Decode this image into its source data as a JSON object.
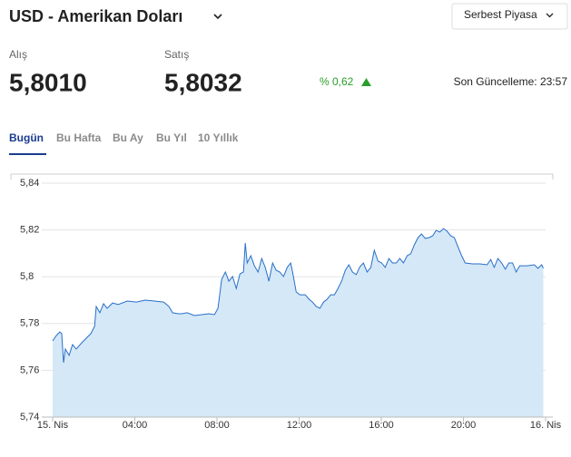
{
  "header": {
    "title": "USD - Amerikan Doları",
    "market": "Serbest Piyasa"
  },
  "quotes": {
    "buy_label": "Alış",
    "buy": "5,8010",
    "sell_label": "Satış",
    "sell": "5,8032",
    "change": "% 0,62",
    "updated": "Son Güncelleme: 23:57"
  },
  "tabs": [
    "Bugün",
    "Bu Hafta",
    "Bu Ay",
    "Bu Yıl",
    "10 Yıllık"
  ],
  "chart_data": {
    "type": "area",
    "color": "#2a6fc9",
    "fill": "#d4e8f7",
    "grid": true,
    "xlim": [
      0,
      24
    ],
    "xticks": [
      {
        "value": 0,
        "label": "15. Nis"
      },
      {
        "value": 4,
        "label": "04:00"
      },
      {
        "value": 8,
        "label": "08:00"
      },
      {
        "value": 12,
        "label": "12:00"
      },
      {
        "value": 16,
        "label": "16:00"
      },
      {
        "value": 20,
        "label": "20:00"
      },
      {
        "value": 24,
        "label": "16. Nis"
      }
    ],
    "ylim": [
      5.74,
      5.84
    ],
    "yticks": [
      {
        "value": 5.74,
        "label": "5,74"
      },
      {
        "value": 5.76,
        "label": "5,76"
      },
      {
        "value": 5.78,
        "label": "5,78"
      },
      {
        "value": 5.8,
        "label": "5,8"
      },
      {
        "value": 5.82,
        "label": "5,82"
      },
      {
        "value": 5.84,
        "label": "5,84"
      }
    ],
    "x": [
      0,
      0.18,
      0.35,
      0.44,
      0.53,
      0.62,
      0.8,
      0.97,
      1.15,
      1.42,
      1.68,
      1.86,
      2.04,
      2.12,
      2.3,
      2.48,
      2.65,
      2.92,
      3.19,
      3.63,
      4.07,
      4.51,
      4.96,
      5.4,
      5.66,
      5.84,
      6.11,
      6.28,
      6.55,
      6.9,
      7.26,
      7.61,
      7.88,
      8.05,
      8.23,
      8.41,
      8.58,
      8.76,
      8.94,
      9.12,
      9.29,
      9.38,
      9.47,
      9.65,
      9.82,
      10,
      10.18,
      10.35,
      10.53,
      10.71,
      10.88,
      11.06,
      11.24,
      11.42,
      11.59,
      11.68,
      11.86,
      12.04,
      12.3,
      12.48,
      12.65,
      12.83,
      13.01,
      13.19,
      13.36,
      13.54,
      13.72,
      13.89,
      14.07,
      14.25,
      14.42,
      14.6,
      14.78,
      14.96,
      15.13,
      15.31,
      15.49,
      15.66,
      15.84,
      16.02,
      16.19,
      16.37,
      16.55,
      16.73,
      16.9,
      17.08,
      17.26,
      17.43,
      17.61,
      17.79,
      17.96,
      18.14,
      18.32,
      18.5,
      18.67,
      18.85,
      19.03,
      19.2,
      19.38,
      19.56,
      19.73,
      19.91,
      20.09,
      20.44,
      20.8,
      21.15,
      21.33,
      21.5,
      21.68,
      21.86,
      22.04,
      22.21,
      22.39,
      22.57,
      22.74,
      23.1,
      23.45,
      23.63,
      23.81,
      23.89
    ],
    "values": [
      5.7726,
      5.7749,
      5.7764,
      5.7757,
      5.7633,
      5.7691,
      5.7664,
      5.771,
      5.7691,
      5.7718,
      5.7741,
      5.7757,
      5.7788,
      5.7873,
      5.7846,
      5.7885,
      5.7865,
      5.7888,
      5.7881,
      5.7896,
      5.7892,
      5.79,
      5.7896,
      5.7892,
      5.7873,
      5.7846,
      5.7842,
      5.7842,
      5.7846,
      5.7834,
      5.7838,
      5.7842,
      5.7838,
      5.7865,
      5.7989,
      5.802,
      5.7981,
      5.8001,
      5.795,
      5.8012,
      5.802,
      5.8144,
      5.8059,
      5.809,
      5.8047,
      5.802,
      5.8078,
      5.804,
      5.7981,
      5.8059,
      5.8028,
      5.802,
      5.8001,
      5.804,
      5.8059,
      5.802,
      5.7935,
      5.7923,
      5.7923,
      5.7904,
      5.7892,
      5.7873,
      5.7865,
      5.7892,
      5.7904,
      5.7923,
      5.7923,
      5.795,
      5.7981,
      5.8028,
      5.8051,
      5.802,
      5.8009,
      5.8043,
      5.8059,
      5.802,
      5.804,
      5.8113,
      5.8067,
      5.8059,
      5.804,
      5.8078,
      5.8059,
      5.8059,
      5.8078,
      5.8059,
      5.809,
      5.8098,
      5.8136,
      5.8167,
      5.8183,
      5.8164,
      5.8167,
      5.8175,
      5.8198,
      5.8191,
      5.8206,
      5.8195,
      5.8175,
      5.8167,
      5.8129,
      5.809,
      5.8059,
      5.8055,
      5.8055,
      5.8051,
      5.8074,
      5.804,
      5.8078,
      5.8059,
      5.8032,
      5.8059,
      5.8059,
      5.802,
      5.8047,
      5.8047,
      5.8051,
      5.8036,
      5.8051,
      5.8036
    ]
  }
}
